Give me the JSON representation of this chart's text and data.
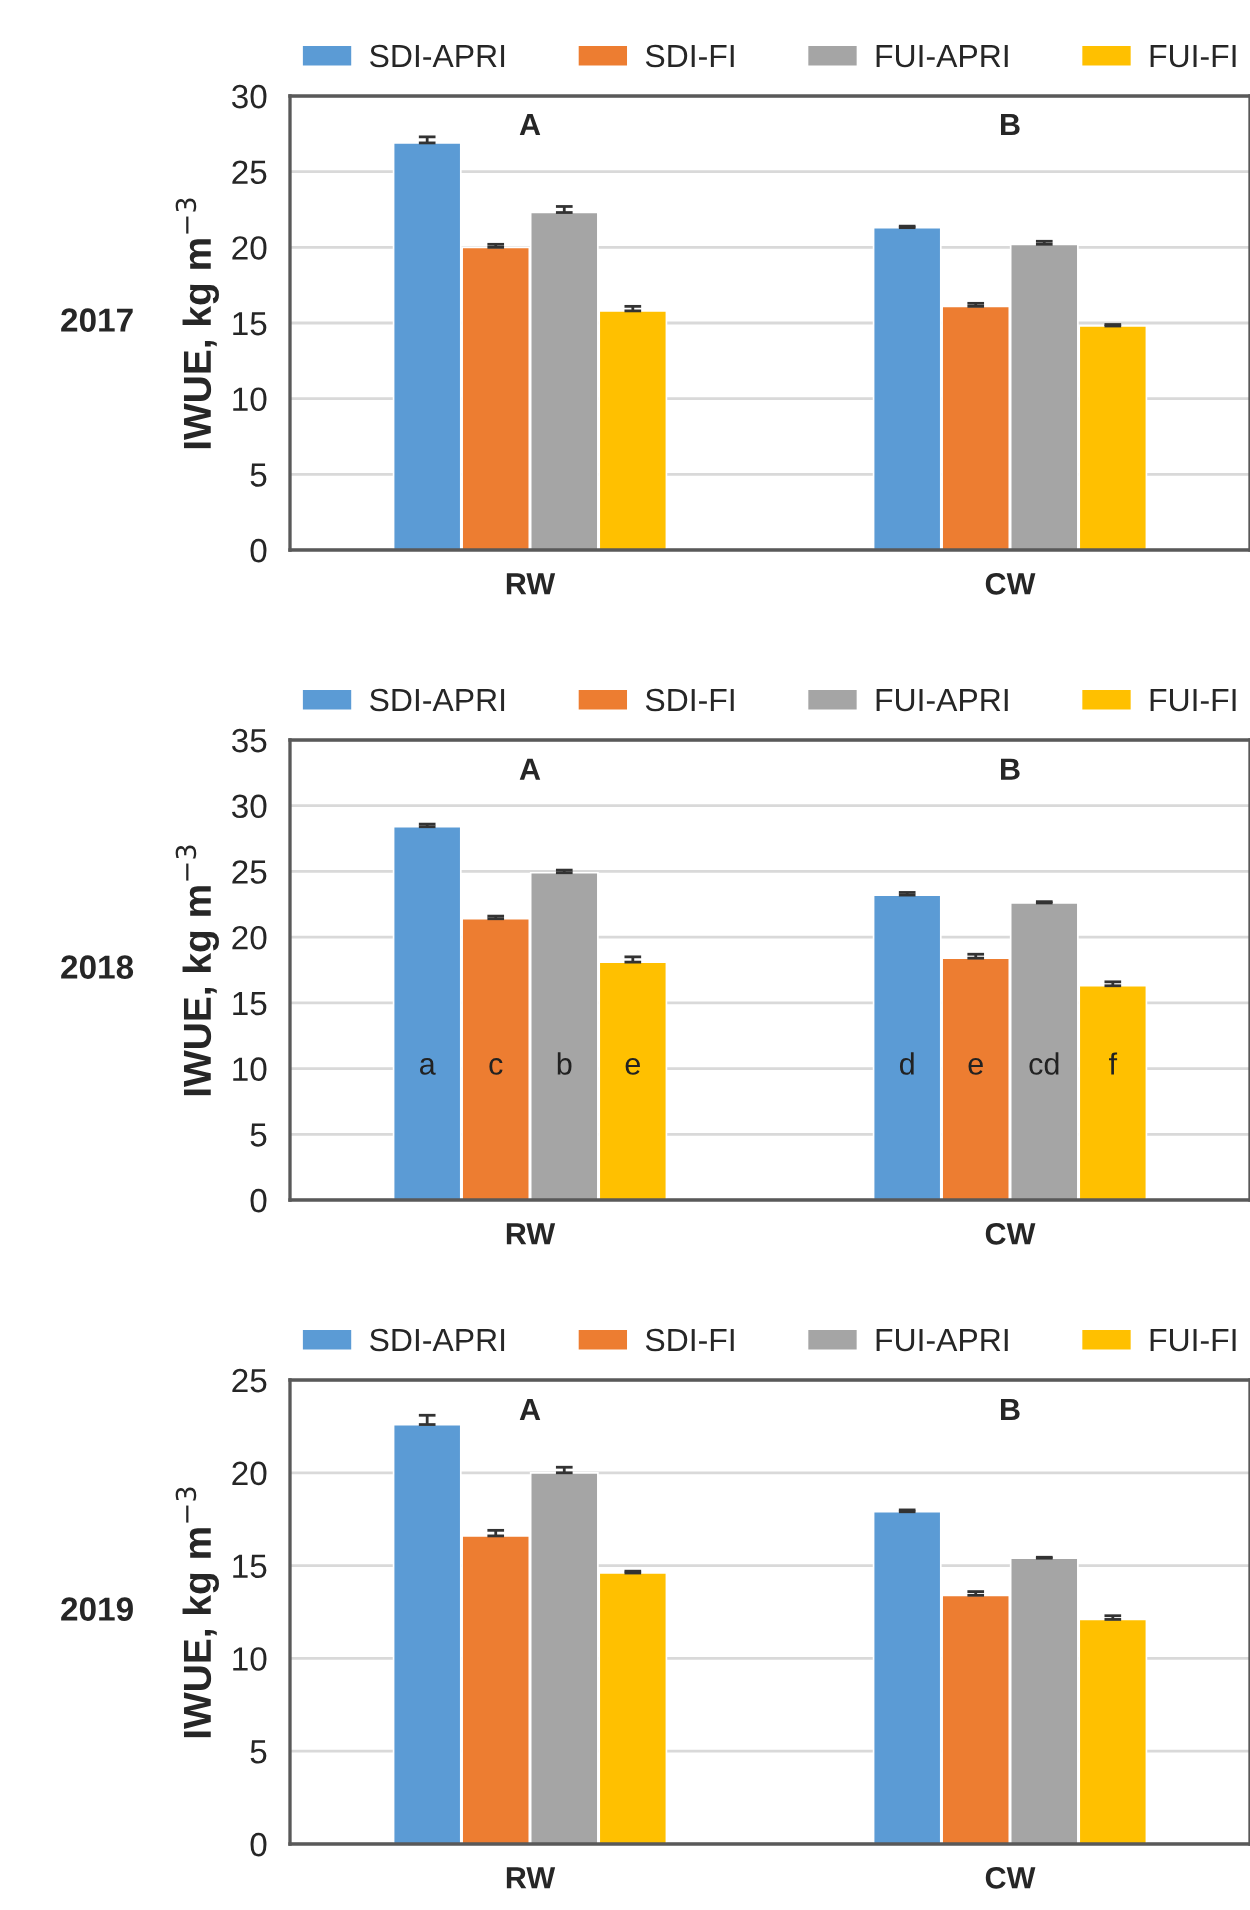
{
  "chart_data": [
    {
      "type": "bar",
      "title": "2017",
      "ylabel": "IWUE, kg m$^{−3}$",
      "categories": [
        "RW",
        "CW"
      ],
      "ylim": [
        0,
        30
      ],
      "yticks": [
        0,
        5,
        10,
        15,
        20,
        25,
        30
      ],
      "grid": "y",
      "legend": "top",
      "series": [
        {
          "name": "SDI-APRI",
          "color": "#5b9bd5",
          "values": [
            26.9,
            21.3
          ],
          "errors": [
            0.4,
            0.1
          ]
        },
        {
          "name": "SDI-FI",
          "color": "#ed7d31",
          "values": [
            20.0,
            16.1
          ],
          "errors": [
            0.2,
            0.2
          ]
        },
        {
          "name": "FUI-APRI",
          "color": "#a5a5a5",
          "values": [
            22.3,
            20.2
          ],
          "errors": [
            0.4,
            0.2
          ]
        },
        {
          "name": "FUI-FI",
          "color": "#ffc000",
          "values": [
            15.8,
            14.8
          ],
          "errors": [
            0.3,
            0.1
          ]
        }
      ],
      "annotations": [
        "A",
        "B"
      ]
    },
    {
      "type": "bar",
      "title": "2018",
      "ylabel": "IWUE, kg m$^{−3}$",
      "categories": [
        "RW",
        "CW"
      ],
      "ylim": [
        0,
        35
      ],
      "yticks": [
        0,
        5,
        10,
        15,
        20,
        25,
        30,
        35
      ],
      "grid": "y",
      "legend": "top",
      "series": [
        {
          "name": "SDI-APRI",
          "color": "#5b9bd5",
          "values": [
            28.4,
            23.2
          ],
          "errors": [
            0.2,
            0.2
          ],
          "value_labels": [
            "a",
            "d"
          ]
        },
        {
          "name": "SDI-FI",
          "color": "#ed7d31",
          "values": [
            21.4,
            18.4
          ],
          "errors": [
            0.2,
            0.3
          ],
          "value_labels": [
            "c",
            "e"
          ]
        },
        {
          "name": "FUI-APRI",
          "color": "#a5a5a5",
          "values": [
            24.9,
            22.6
          ],
          "errors": [
            0.2,
            0.1
          ],
          "value_labels": [
            "b",
            "cd"
          ]
        },
        {
          "name": "FUI-FI",
          "color": "#ffc000",
          "values": [
            18.1,
            16.3
          ],
          "errors": [
            0.4,
            0.3
          ],
          "value_labels": [
            "e",
            "f"
          ]
        }
      ],
      "annotations": [
        "A",
        "B"
      ]
    },
    {
      "type": "bar",
      "title": "2019",
      "ylabel": "IWUE, kg m$^{−3}$",
      "categories": [
        "RW",
        "CW"
      ],
      "ylim": [
        0,
        25
      ],
      "yticks": [
        0,
        5,
        10,
        15,
        20,
        25
      ],
      "grid": "y",
      "legend": "top",
      "series": [
        {
          "name": "SDI-APRI",
          "color": "#5b9bd5",
          "values": [
            22.6,
            17.9
          ],
          "errors": [
            0.5,
            0.1
          ]
        },
        {
          "name": "SDI-FI",
          "color": "#ed7d31",
          "values": [
            16.6,
            13.4
          ],
          "errors": [
            0.3,
            0.2
          ]
        },
        {
          "name": "FUI-APRI",
          "color": "#a5a5a5",
          "values": [
            20.0,
            15.4
          ],
          "errors": [
            0.3,
            0.05
          ]
        },
        {
          "name": "FUI-FI",
          "color": "#ffc000",
          "values": [
            14.6,
            12.1
          ],
          "errors": [
            0.1,
            0.2
          ]
        }
      ],
      "annotations": [
        "A",
        "B"
      ]
    }
  ]
}
